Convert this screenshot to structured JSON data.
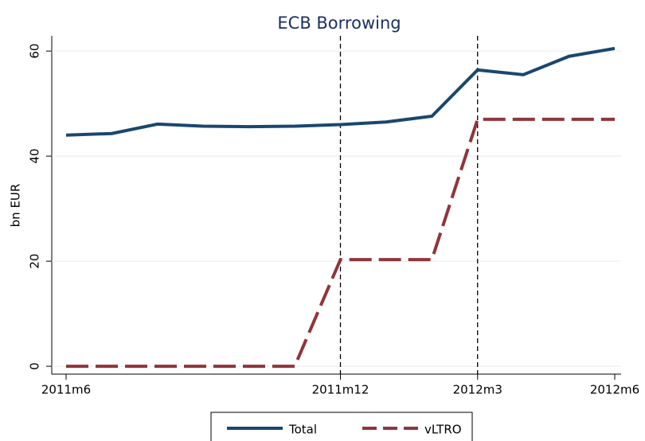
{
  "chart_data": {
    "type": "line",
    "title": "ECB Borrowing",
    "y_label": "bn EUR",
    "x": [
      "2011m6",
      "2011m7",
      "2011m8",
      "2011m9",
      "2011m10",
      "2011m11",
      "2011m12",
      "2012m1",
      "2012m2",
      "2012m3",
      "2012m4",
      "2012m5",
      "2012m6"
    ],
    "xticks": [
      "2011m6",
      "2011m12",
      "2012m3",
      "2012m6"
    ],
    "xlines": [
      "2011m12",
      "2012m3"
    ],
    "series": [
      {
        "name": "Total",
        "color": "#1a476f",
        "dash": false,
        "values": [
          44,
          44.3,
          46.1,
          45.7,
          45.6,
          45.7,
          46,
          46.5,
          47.6,
          56.4,
          55.5,
          59,
          60.5
        ]
      },
      {
        "name": "vLTRO",
        "color": "#90353b",
        "dash": true,
        "values": [
          0,
          0,
          0,
          0,
          0,
          0,
          20.3,
          20.3,
          20.3,
          47,
          47,
          47,
          47
        ]
      }
    ],
    "ylim": [
      -1.5,
      62.9
    ],
    "yticks": [
      0,
      20,
      40,
      60
    ],
    "grid": true,
    "legend": "bottom"
  }
}
